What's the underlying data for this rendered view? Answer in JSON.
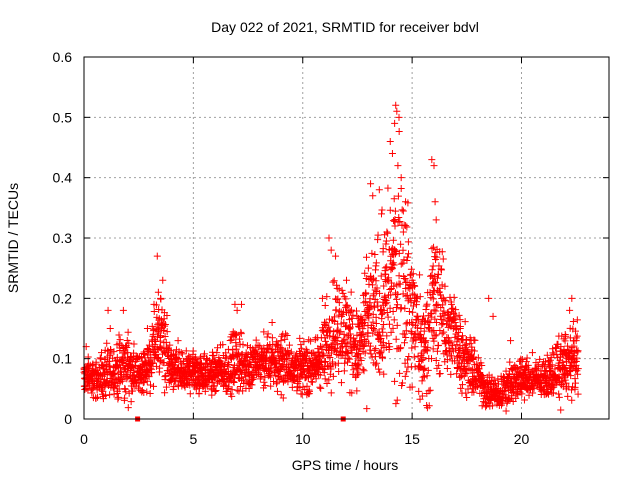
{
  "chart_data": {
    "type": "scatter",
    "title": "Day 022 of 2021, SRMTID for receiver bdvl",
    "xlabel": "GPS time / hours",
    "ylabel": "SRMTID / TECUs",
    "xlim": [
      0,
      24
    ],
    "ylim": [
      0,
      0.6
    ],
    "xticks": [
      0,
      5,
      10,
      15,
      20
    ],
    "xtick_labels": [
      "0",
      "5",
      "10",
      "15",
      "20"
    ],
    "yticks": [
      0,
      0.1,
      0.2,
      0.3,
      0.4,
      0.5,
      0.6
    ],
    "ytick_labels": [
      "0",
      "0.1",
      "0.2",
      "0.3",
      "0.4",
      "0.5",
      "0.6"
    ],
    "grid": true,
    "marker": "plus",
    "color": "#ff0000",
    "gap_markers_x": [
      2.45,
      11.85
    ],
    "envelope": {
      "x": [
        0.0,
        0.5,
        1.0,
        1.5,
        2.0,
        2.5,
        3.0,
        3.5,
        4.0,
        4.5,
        5.0,
        5.5,
        6.0,
        6.5,
        7.0,
        7.5,
        8.0,
        8.5,
        9.0,
        9.5,
        10.0,
        10.5,
        11.0,
        11.5,
        12.0,
        12.5,
        13.0,
        13.5,
        14.0,
        14.5,
        15.0,
        15.5,
        16.0,
        16.5,
        17.0,
        17.5,
        18.0,
        18.5,
        19.0,
        19.5,
        20.0,
        20.5,
        21.0,
        21.5,
        22.0,
        22.6
      ],
      "center": [
        0.07,
        0.065,
        0.07,
        0.08,
        0.085,
        0.075,
        0.09,
        0.14,
        0.08,
        0.075,
        0.08,
        0.075,
        0.075,
        0.08,
        0.095,
        0.085,
        0.09,
        0.095,
        0.095,
        0.09,
        0.085,
        0.085,
        0.11,
        0.16,
        0.14,
        0.11,
        0.16,
        0.18,
        0.22,
        0.25,
        0.17,
        0.11,
        0.2,
        0.16,
        0.13,
        0.1,
        0.07,
        0.045,
        0.04,
        0.06,
        0.07,
        0.065,
        0.065,
        0.08,
        0.09,
        0.1
      ],
      "spread": [
        0.025,
        0.022,
        0.03,
        0.035,
        0.04,
        0.02,
        0.035,
        0.06,
        0.025,
        0.025,
        0.025,
        0.025,
        0.025,
        0.03,
        0.04,
        0.03,
        0.03,
        0.035,
        0.035,
        0.03,
        0.03,
        0.03,
        0.05,
        0.07,
        0.06,
        0.05,
        0.08,
        0.09,
        0.12,
        0.15,
        0.09,
        0.06,
        0.1,
        0.06,
        0.05,
        0.04,
        0.03,
        0.02,
        0.02,
        0.025,
        0.025,
        0.02,
        0.02,
        0.03,
        0.045,
        0.04
      ]
    },
    "series": [
      {
        "name": "SRMTID",
        "x": [
          0.1,
          0.4,
          0.8,
          1.1,
          1.2,
          1.8,
          2.0,
          2.9,
          3.2,
          3.35,
          3.4,
          3.5,
          3.6,
          4.3,
          6.9,
          7.0,
          7.2,
          8.6,
          10.9,
          11.2,
          11.3,
          11.5,
          12.0,
          12.6,
          12.8,
          13.0,
          13.1,
          13.2,
          13.5,
          13.6,
          13.8,
          14.0,
          14.1,
          14.2,
          14.25,
          14.3,
          14.35,
          14.4,
          14.5,
          14.6,
          14.7,
          15.0,
          15.2,
          15.4,
          15.9,
          16.0,
          16.05,
          16.1,
          16.2,
          16.5,
          16.8,
          17.2,
          18.5,
          18.7,
          19.5,
          20.5,
          21.8,
          22.0,
          22.2,
          22.3,
          22.5
        ],
        "y": [
          0.12,
          0.09,
          0.11,
          0.18,
          0.15,
          0.18,
          0.11,
          0.15,
          0.19,
          0.27,
          0.21,
          0.2,
          0.23,
          0.13,
          0.19,
          0.18,
          0.19,
          0.16,
          0.2,
          0.3,
          0.28,
          0.27,
          0.23,
          0.13,
          0.08,
          0.25,
          0.39,
          0.37,
          0.38,
          0.34,
          0.29,
          0.46,
          0.44,
          0.49,
          0.52,
          0.51,
          0.42,
          0.5,
          0.4,
          0.31,
          0.36,
          0.23,
          0.2,
          0.15,
          0.43,
          0.42,
          0.36,
          0.33,
          0.24,
          0.22,
          0.19,
          0.15,
          0.2,
          0.17,
          0.13,
          0.11,
          0.12,
          0.14,
          0.18,
          0.2,
          0.13
        ]
      }
    ]
  }
}
